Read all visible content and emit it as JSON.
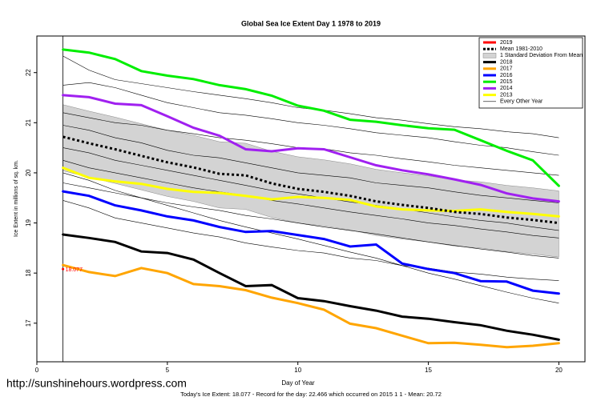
{
  "chart_data": {
    "type": "line",
    "title": "Global Sea Ice Extent Day 1 1978 to 2019",
    "x_label": "Day of Year",
    "y_label": "Ice Extent in millions of sq. km.",
    "watermark": "http://sunshinehours.wordpress.com",
    "footnote": "Today's Ice Extent: 18.077  - Record for the day: 22.466 which occurred on 2015 1 1  - Mean: 20.72",
    "legend": "top-right",
    "x": [
      1,
      2,
      3,
      4,
      5,
      6,
      7,
      8,
      9,
      10,
      11,
      12,
      13,
      14,
      15,
      16,
      17,
      18,
      19,
      20
    ],
    "xlim": [
      0,
      21
    ],
    "ylim": [
      16.23,
      22.73
    ],
    "xticks": [
      0,
      5,
      10,
      15,
      20
    ],
    "yticks": [
      17,
      18,
      19,
      20,
      21,
      22
    ],
    "series": [
      {
        "name": "2019",
        "color": "#ff0000",
        "line_width": 3,
        "values": [
          18.077,
          null,
          null,
          null,
          null,
          null,
          null,
          null,
          null,
          null,
          null,
          null,
          null,
          null,
          null,
          null,
          null,
          null,
          null,
          null
        ]
      },
      {
        "name": "Mean 1981-2010",
        "color": "#000000",
        "line_width": 3,
        "dashed": true,
        "values": [
          20.72,
          20.59,
          20.47,
          20.34,
          20.21,
          20.11,
          19.98,
          19.95,
          19.79,
          19.68,
          19.62,
          19.54,
          19.43,
          19.36,
          19.3,
          19.22,
          19.18,
          19.11,
          19.06,
          19.0
        ]
      },
      {
        "name": "2018",
        "color": "#000000",
        "line_width": 3,
        "values": [
          18.77,
          18.7,
          18.62,
          18.43,
          18.4,
          18.27,
          18.0,
          17.74,
          17.76,
          17.5,
          17.44,
          17.34,
          17.25,
          17.13,
          17.09,
          17.02,
          16.96,
          16.85,
          16.77,
          16.67
        ]
      },
      {
        "name": "2017",
        "color": "#ffa500",
        "line_width": 3,
        "values": [
          18.16,
          18.02,
          17.94,
          18.1,
          18.0,
          17.78,
          17.74,
          17.66,
          17.51,
          17.4,
          17.27,
          16.99,
          16.9,
          16.75,
          16.6,
          16.61,
          16.57,
          16.52,
          16.55,
          16.6
        ]
      },
      {
        "name": "2016",
        "color": "#0000ff",
        "line_width": 3,
        "values": [
          19.63,
          19.54,
          19.35,
          19.25,
          19.13,
          19.05,
          18.92,
          18.82,
          18.84,
          18.76,
          18.68,
          18.53,
          18.57,
          18.19,
          18.08,
          18.0,
          17.84,
          17.83,
          17.65,
          17.59
        ]
      },
      {
        "name": "2015",
        "color": "#00ee00",
        "line_width": 3,
        "values": [
          22.46,
          22.4,
          22.27,
          22.03,
          21.94,
          21.87,
          21.75,
          21.67,
          21.54,
          21.34,
          21.24,
          21.06,
          21.02,
          20.95,
          20.89,
          20.86,
          20.65,
          20.44,
          20.25,
          19.74
        ]
      },
      {
        "name": "2014",
        "color": "#a020f0",
        "line_width": 3,
        "values": [
          21.55,
          21.51,
          21.38,
          21.35,
          21.13,
          20.9,
          20.74,
          20.47,
          20.43,
          20.49,
          20.47,
          20.31,
          20.15,
          20.05,
          19.97,
          19.87,
          19.76,
          19.59,
          19.49,
          19.43
        ]
      },
      {
        "name": "2013",
        "color": "#ffff00",
        "line_width": 3,
        "values": [
          20.1,
          19.9,
          19.83,
          19.78,
          19.68,
          19.62,
          19.6,
          19.54,
          19.47,
          19.52,
          19.5,
          19.46,
          19.33,
          19.27,
          19.25,
          19.24,
          19.27,
          19.22,
          19.18,
          19.13
        ]
      }
    ],
    "band": {
      "name": "1 Standard Deviation From Mean",
      "color": "#d3d3d3",
      "upper": [
        21.36,
        21.23,
        21.11,
        20.98,
        20.85,
        20.75,
        20.62,
        20.59,
        20.43,
        20.32,
        20.26,
        20.18,
        20.07,
        20.0,
        19.94,
        19.86,
        19.82,
        19.75,
        19.7,
        19.64
      ],
      "lower": [
        20.04,
        19.91,
        19.79,
        19.66,
        19.53,
        19.43,
        19.3,
        19.27,
        19.11,
        19.0,
        18.94,
        18.86,
        18.75,
        18.68,
        18.62,
        18.54,
        18.5,
        18.43,
        18.38,
        18.32
      ]
    },
    "other_years": {
      "name": "Every Other Year",
      "color": "#000000",
      "values": [
        [
          22.33,
          22.05,
          21.86,
          21.78,
          21.7,
          21.62,
          21.55,
          21.48,
          21.4,
          21.3,
          21.25,
          21.18,
          21.1,
          21.05,
          20.98,
          20.92,
          20.88,
          20.82,
          20.78,
          20.7
        ],
        [
          21.75,
          21.8,
          21.7,
          21.55,
          21.4,
          21.3,
          21.2,
          21.15,
          21.08,
          21.0,
          20.95,
          20.88,
          20.8,
          20.75,
          20.7,
          20.62,
          20.55,
          20.5,
          20.42,
          20.35
        ],
        [
          21.2,
          21.1,
          21.0,
          20.95,
          20.85,
          20.78,
          20.7,
          20.65,
          20.58,
          20.5,
          20.48,
          20.4,
          20.35,
          20.28,
          20.22,
          20.15,
          20.1,
          20.05,
          20.0,
          19.95
        ],
        [
          20.95,
          20.85,
          20.7,
          20.6,
          20.45,
          20.35,
          20.3,
          20.2,
          20.1,
          20.0,
          19.95,
          19.9,
          19.8,
          19.75,
          19.7,
          19.62,
          19.55,
          19.5,
          19.45,
          19.4
        ],
        [
          20.5,
          20.4,
          20.25,
          20.15,
          20.05,
          19.95,
          19.85,
          19.75,
          19.65,
          19.58,
          19.5,
          19.42,
          19.35,
          19.28,
          19.2,
          19.12,
          19.05,
          19.0,
          18.92,
          18.85
        ],
        [
          20.25,
          20.1,
          20.0,
          19.9,
          19.8,
          19.7,
          19.62,
          19.55,
          19.45,
          19.38,
          19.3,
          19.22,
          19.15,
          19.08,
          19.0,
          18.95,
          18.88,
          18.82,
          18.75,
          18.7
        ],
        [
          19.8,
          19.7,
          19.6,
          19.5,
          19.4,
          19.32,
          19.25,
          19.15,
          19.08,
          19.0,
          18.92,
          18.85,
          18.78,
          18.7,
          18.62,
          18.55,
          18.48,
          18.42,
          18.35,
          18.3
        ],
        [
          19.45,
          19.3,
          19.1,
          19.0,
          18.9,
          18.8,
          18.72,
          18.6,
          18.52,
          18.45,
          18.4,
          18.3,
          18.25,
          18.15,
          18.1,
          18.02,
          17.98,
          17.92,
          17.88,
          17.85
        ],
        [
          20.0,
          19.85,
          19.65,
          19.5,
          19.35,
          19.2,
          19.05,
          18.92,
          18.8,
          18.68,
          18.55,
          18.42,
          18.3,
          18.15,
          18.0,
          17.88,
          17.75,
          17.62,
          17.5,
          17.4
        ]
      ]
    }
  }
}
